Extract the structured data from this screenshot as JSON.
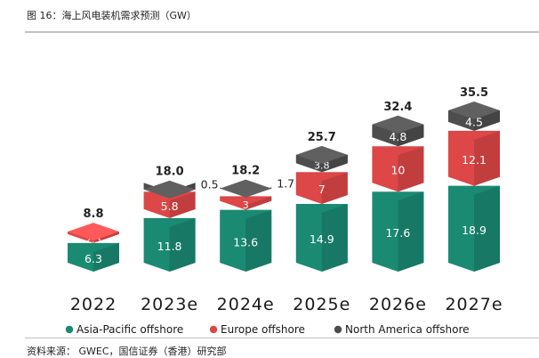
{
  "figure_title": "图 16：海上风电装机需求预测（GW）",
  "source": "资料来源： GWEC，国信证券（香港）研究部",
  "chart_data": {
    "type": "bar",
    "stacked": true,
    "style": "3d",
    "categories": [
      "2022",
      "2023e",
      "2024e",
      "2025e",
      "2026e",
      "2027e"
    ],
    "series": [
      {
        "name": "Asia-Pacific offshore",
        "color": "#1a8a73",
        "values": [
          6.3,
          11.8,
          13.6,
          14.9,
          17.6,
          18.9
        ],
        "labels": [
          "6.3",
          "11.8",
          "13.6",
          "14.9",
          "17.6",
          "18.9"
        ]
      },
      {
        "name": "Europe offshore",
        "color": "#dd4747",
        "values": [
          2.5,
          5.8,
          3,
          7,
          10,
          12.1
        ],
        "labels": [
          "2.5",
          "5.8",
          "3",
          "7",
          "10",
          "12.1"
        ]
      },
      {
        "name": "North America offshore",
        "color": "#4d4d4d",
        "values": [
          0,
          0.5,
          1.7,
          3.8,
          4.8,
          4.5
        ],
        "labels": [
          "",
          "",
          "",
          "3.8",
          "4.8",
          "4.5"
        ]
      }
    ],
    "outside_labels": [
      {
        "category": "2023e",
        "text": "0.5"
      },
      {
        "category": "2024e",
        "text": "1.7"
      }
    ],
    "totals": [
      "8.8",
      "18.0",
      "18.2",
      "25.7",
      "32.4",
      "35.5"
    ],
    "legend": {
      "position": "bottom",
      "entries": [
        "Asia-Pacific offshore",
        "Europe offshore",
        "North America offshore"
      ]
    },
    "ylim": [
      0,
      36
    ],
    "grid": false
  }
}
